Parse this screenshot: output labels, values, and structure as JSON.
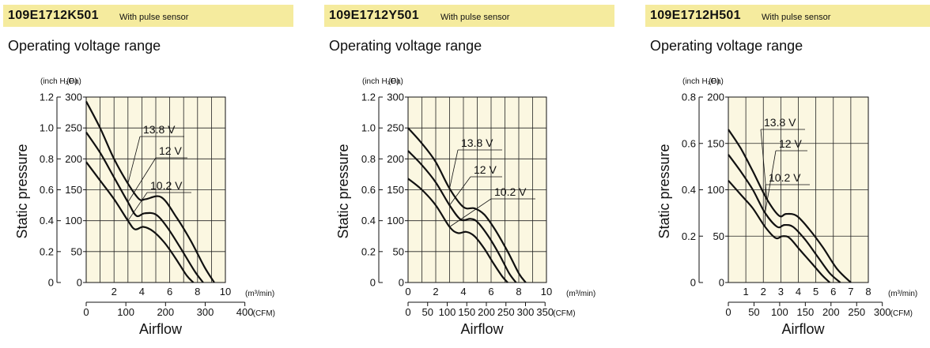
{
  "charts": [
    {
      "model": "109E1712K501",
      "note": "With pulse sensor",
      "subtitle": "Operating voltage range"
    },
    {
      "model": "109E1712Y501",
      "note": "With pulse sensor",
      "subtitle": "Operating voltage range"
    },
    {
      "model": "109E1712H501",
      "note": "With pulse sensor",
      "subtitle": "Operating voltage range"
    }
  ],
  "colors": {
    "header": "#f5eb9e",
    "plot_bg": "#fbf7e1",
    "line": "#111111"
  },
  "chart_data": [
    {
      "type": "line",
      "title": "109E1712K501",
      "xlabel": "Airflow",
      "ylabel": "Static pressure",
      "unit_x_top": "(m³/min)",
      "unit_x_bottom": "(CFM)",
      "unit_y_left": "(inch H₂O)",
      "unit_y_right": "(Pa)",
      "xlim": [
        0,
        10
      ],
      "ylim": [
        0,
        300
      ],
      "x_ticks": [
        "2",
        "4",
        "6",
        "8",
        "10"
      ],
      "cfm_ticks": [
        "0",
        "100",
        "200",
        "300",
        "400"
      ],
      "pa_ticks": [
        "0",
        "50",
        "100",
        "150",
        "200",
        "250",
        "300"
      ],
      "inch_ticks": [
        "0",
        "0.2",
        "0.4",
        "0.6",
        "0.8",
        "1.0",
        "1.2"
      ],
      "grid": true,
      "series": [
        {
          "name": "13.8 V",
          "x": [
            0,
            1,
            2,
            3,
            3.8,
            4.3,
            5.4,
            6.5,
            7.5,
            8.5,
            9.2
          ],
          "y": [
            293,
            250,
            200,
            160,
            135,
            135,
            138,
            105,
            68,
            25,
            0
          ]
        },
        {
          "name": "12 V",
          "x": [
            0,
            1,
            2,
            3,
            3.6,
            4.2,
            5,
            5.8,
            6.8,
            7.8,
            8.4
          ],
          "y": [
            243,
            210,
            170,
            130,
            108,
            112,
            110,
            90,
            55,
            18,
            0
          ]
        },
        {
          "name": "10.2 V",
          "x": [
            0,
            1,
            2,
            3,
            3.5,
            4.1,
            4.8,
            5.6,
            6.4,
            7.2,
            7.7
          ],
          "y": [
            195,
            165,
            135,
            100,
            86,
            90,
            83,
            65,
            40,
            12,
            0
          ]
        }
      ],
      "labels": [
        "13.8 V",
        "12 V",
        "10.2 V"
      ]
    },
    {
      "type": "line",
      "title": "109E1712Y501",
      "xlabel": "Airflow",
      "ylabel": "Static pressure",
      "unit_x_top": "(m³/min)",
      "unit_x_bottom": "(CFM)",
      "unit_y_left": "(inch H₂O)",
      "unit_y_right": "(Pa)",
      "xlim": [
        0,
        10
      ],
      "ylim": [
        0,
        300
      ],
      "x_ticks": [
        "0",
        "2",
        "4",
        "6",
        "8",
        "10"
      ],
      "cfm_ticks": [
        "0",
        "50",
        "100",
        "150",
        "200",
        "250",
        "300",
        "350"
      ],
      "pa_ticks": [
        "0",
        "50",
        "100",
        "150",
        "200",
        "250",
        "300"
      ],
      "inch_ticks": [
        "0",
        "0.2",
        "0.4",
        "0.6",
        "0.8",
        "1.0",
        "1.2"
      ],
      "grid": true,
      "series": [
        {
          "name": "13.8 V",
          "x": [
            0,
            1,
            2,
            3,
            4,
            4.8,
            5.5,
            6.3,
            7.2,
            8,
            8.5
          ],
          "y": [
            250,
            225,
            195,
            152,
            122,
            120,
            110,
            85,
            50,
            15,
            0
          ]
        },
        {
          "name": "12 V",
          "x": [
            0,
            1,
            2,
            3,
            3.8,
            4.5,
            5,
            5.8,
            6.6,
            7.3,
            7.8
          ],
          "y": [
            213,
            190,
            162,
            125,
            102,
            103,
            98,
            75,
            45,
            15,
            0
          ]
        },
        {
          "name": "10.2 V",
          "x": [
            0,
            1,
            2,
            3,
            3.6,
            4.2,
            4.8,
            5.5,
            6.2,
            6.8,
            7.2
          ],
          "y": [
            168,
            150,
            125,
            90,
            80,
            82,
            75,
            55,
            30,
            10,
            0
          ]
        }
      ],
      "labels": [
        "13.8 V",
        "12 V",
        "10.2 V"
      ]
    },
    {
      "type": "line",
      "title": "109E1712H501",
      "xlabel": "Airflow",
      "ylabel": "Static pressure",
      "unit_x_top": "(m³/min)",
      "unit_x_bottom": "(CFM)",
      "unit_y_left": "(inch H₂O)",
      "unit_y_right": "(Pa)",
      "xlim": [
        0,
        8
      ],
      "ylim": [
        0,
        200
      ],
      "x_ticks": [
        "1",
        "2",
        "3",
        "4",
        "5",
        "6",
        "7",
        "8"
      ],
      "cfm_ticks": [
        "0",
        "50",
        "100",
        "150",
        "200",
        "250",
        "300"
      ],
      "pa_ticks": [
        "0",
        "50",
        "100",
        "150",
        "200"
      ],
      "inch_ticks": [
        "0",
        "0.2",
        "0.4",
        "0.6",
        "0.8"
      ],
      "grid": true,
      "series": [
        {
          "name": "13.8 V",
          "x": [
            0,
            0.7,
            1.4,
            2.2,
            2.9,
            3.3,
            3.9,
            4.6,
            5.4,
            6.2,
            7.0
          ],
          "y": [
            165,
            145,
            120,
            90,
            72,
            74,
            72,
            58,
            38,
            15,
            0
          ]
        },
        {
          "name": "12 V",
          "x": [
            0,
            0.7,
            1.4,
            2.1,
            2.8,
            3.2,
            3.7,
            4.4,
            5.1,
            5.8,
            6.4
          ],
          "y": [
            138,
            120,
            100,
            75,
            60,
            62,
            60,
            46,
            28,
            10,
            0
          ]
        },
        {
          "name": "10.2 V",
          "x": [
            0,
            0.7,
            1.4,
            2.1,
            2.7,
            3.1,
            3.5,
            4.1,
            4.8,
            5.4,
            5.8
          ],
          "y": [
            110,
            95,
            80,
            60,
            48,
            50,
            48,
            35,
            20,
            7,
            0
          ]
        }
      ],
      "labels": [
        "13.8 V",
        "12 V",
        "10.2 V"
      ]
    }
  ]
}
